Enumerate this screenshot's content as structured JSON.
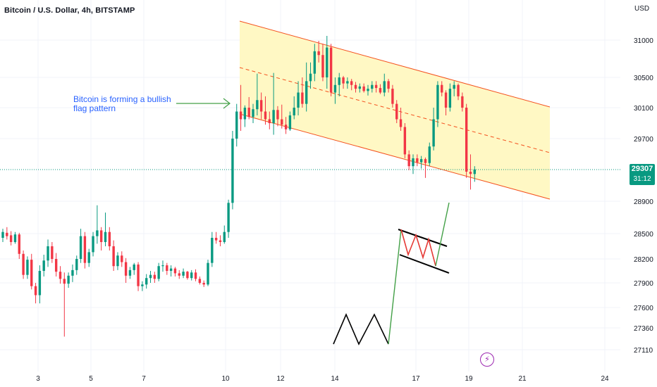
{
  "header": {
    "title": "Bitcoin / U.S. Dollar, 4h, BITSTAMP",
    "currency": "USD"
  },
  "annotation": {
    "text": "Bitcoin is forming a bullish flag pattern"
  },
  "price_tag": {
    "price": "29307",
    "countdown": "31:12",
    "color": "#089981"
  },
  "colors": {
    "up": "#089981",
    "down": "#f23645",
    "channel_fill": "#fff8c4",
    "channel_line": "#f4511e",
    "arrow": "#43a047",
    "flag_red": "#e53935",
    "pole_green": "#43a047"
  },
  "icons": {
    "bolt": "lightning-icon"
  },
  "chart_data": {
    "type": "candlestick",
    "title": "Bitcoin / U.S. Dollar, 4h, BITSTAMP",
    "ylabel": "USD",
    "ylim": [
      27000,
      31350
    ],
    "yticks": [
      31000,
      30500,
      30100,
      29700,
      28900,
      28500,
      28200,
      27900,
      27600,
      27360,
      27110
    ],
    "xticks": [
      "3",
      "5",
      "7",
      "10",
      "12",
      "14",
      "17",
      "19",
      "21",
      "24"
    ],
    "last_price": 29307,
    "grid": true,
    "series": [
      {
        "ohlc": [
          [
            28450,
            28560,
            28400,
            28520
          ],
          [
            28510,
            28580,
            28430,
            28470
          ],
          [
            28480,
            28530,
            28360,
            28400
          ],
          [
            28400,
            28520,
            28380,
            28490
          ],
          [
            28490,
            28510,
            28200,
            28260
          ],
          [
            28260,
            28300,
            27950,
            28000
          ],
          [
            28000,
            28230,
            27950,
            28190
          ],
          [
            28190,
            28260,
            27820,
            27860
          ],
          [
            27860,
            27900,
            27650,
            27750
          ],
          [
            27750,
            28120,
            27650,
            28050
          ],
          [
            28050,
            28250,
            27980,
            28180
          ],
          [
            28180,
            28430,
            28100,
            28350
          ],
          [
            28350,
            28400,
            28150,
            28200
          ],
          [
            28200,
            28270,
            27980,
            28040
          ],
          [
            28040,
            28110,
            27890,
            27950
          ],
          [
            27950,
            28030,
            27260,
            27890
          ],
          [
            27890,
            28030,
            27840,
            27990
          ],
          [
            27990,
            28130,
            27910,
            28060
          ],
          [
            28060,
            28240,
            28000,
            28200
          ],
          [
            28200,
            28560,
            28150,
            28470
          ],
          [
            28470,
            28520,
            28080,
            28150
          ],
          [
            28150,
            28320,
            28100,
            28280
          ],
          [
            28280,
            28520,
            28230,
            28470
          ],
          [
            28470,
            28850,
            28380,
            28540
          ],
          [
            28540,
            28580,
            28300,
            28400
          ],
          [
            28400,
            28760,
            28350,
            28520
          ],
          [
            28520,
            28580,
            28300,
            28350
          ],
          [
            28350,
            28420,
            28050,
            28110
          ],
          [
            28110,
            28280,
            28060,
            28240
          ],
          [
            28240,
            28290,
            28100,
            28160
          ],
          [
            28160,
            28210,
            27900,
            27990
          ],
          [
            27990,
            28100,
            27950,
            28060
          ],
          [
            28060,
            28150,
            28000,
            28130
          ],
          [
            28130,
            28160,
            27800,
            27860
          ],
          [
            27860,
            27920,
            27800,
            27880
          ],
          [
            27880,
            28010,
            27830,
            27960
          ],
          [
            27960,
            28050,
            27900,
            28000
          ],
          [
            28000,
            28040,
            27900,
            27950
          ],
          [
            27950,
            28150,
            27920,
            28110
          ],
          [
            28110,
            28180,
            28040,
            28120
          ],
          [
            28120,
            28150,
            28000,
            28050
          ],
          [
            28050,
            28120,
            27980,
            28080
          ],
          [
            28080,
            28100,
            27980,
            28020
          ],
          [
            28020,
            28060,
            27950,
            27990
          ],
          [
            27990,
            28080,
            27960,
            28040
          ],
          [
            28040,
            28050,
            27940,
            27960
          ],
          [
            27960,
            28060,
            27930,
            28030
          ],
          [
            28030,
            28070,
            27920,
            27950
          ],
          [
            27950,
            27980,
            27880,
            27900
          ],
          [
            27900,
            27930,
            27850,
            27880
          ],
          [
            27880,
            28190,
            27860,
            28150
          ],
          [
            28150,
            28520,
            28100,
            28450
          ],
          [
            28450,
            28520,
            28380,
            28420
          ],
          [
            28420,
            28480,
            28350,
            28400
          ],
          [
            28400,
            28600,
            28380,
            28520
          ],
          [
            28520,
            28920,
            28450,
            28880
          ],
          [
            28880,
            29800,
            28800,
            29700
          ],
          [
            29700,
            30150,
            29600,
            30050
          ],
          [
            30050,
            30400,
            29800,
            29950
          ],
          [
            29950,
            30130,
            29850,
            30100
          ],
          [
            30100,
            30240,
            29950,
            29980
          ],
          [
            29980,
            30150,
            29900,
            30080
          ],
          [
            30080,
            30550,
            30000,
            30200
          ],
          [
            30200,
            30300,
            29950,
            30050
          ],
          [
            30050,
            30250,
            29880,
            29950
          ],
          [
            29950,
            30050,
            29820,
            29900
          ],
          [
            29900,
            30560,
            29750,
            30070
          ],
          [
            30070,
            30120,
            29860,
            29950
          ],
          [
            29950,
            30140,
            29830,
            29880
          ],
          [
            29880,
            29980,
            29760,
            29820
          ],
          [
            29820,
            30050,
            29800,
            30000
          ],
          [
            30000,
            30250,
            29950,
            30100
          ],
          [
            30100,
            30450,
            30000,
            30300
          ],
          [
            30300,
            30500,
            30100,
            30150
          ],
          [
            30150,
            30700,
            30050,
            30450
          ],
          [
            30450,
            30700,
            30350,
            30550
          ],
          [
            30550,
            30950,
            30450,
            30850
          ],
          [
            30850,
            30990,
            30700,
            30800
          ],
          [
            30800,
            30950,
            30450,
            30500
          ],
          [
            30500,
            31060,
            30350,
            30900
          ],
          [
            30900,
            30950,
            30250,
            30300
          ],
          [
            30300,
            30500,
            30150,
            30400
          ],
          [
            30400,
            30560,
            30250,
            30500
          ],
          [
            30500,
            30520,
            30350,
            30420
          ],
          [
            30420,
            30500,
            30350,
            30450
          ],
          [
            30450,
            30480,
            30330,
            30400
          ],
          [
            30400,
            30440,
            30300,
            30350
          ],
          [
            30350,
            30420,
            30300,
            30380
          ],
          [
            30380,
            30420,
            30300,
            30320
          ],
          [
            30320,
            30400,
            30260,
            30350
          ],
          [
            30350,
            30450,
            30300,
            30400
          ],
          [
            30400,
            30450,
            30300,
            30360
          ],
          [
            30360,
            30410,
            30280,
            30300
          ],
          [
            30300,
            30550,
            30250,
            30450
          ],
          [
            30450,
            30480,
            30300,
            30350
          ],
          [
            30350,
            30400,
            30100,
            30150
          ],
          [
            30150,
            30200,
            29900,
            29950
          ],
          [
            29950,
            30100,
            29800,
            29850
          ],
          [
            29850,
            29900,
            29450,
            29500
          ],
          [
            29500,
            29550,
            29300,
            29350
          ],
          [
            29350,
            29500,
            29250,
            29450
          ],
          [
            29450,
            29500,
            29350,
            29400
          ],
          [
            29400,
            29480,
            29320,
            29440
          ],
          [
            29440,
            29460,
            29200,
            29390
          ],
          [
            29390,
            29650,
            29350,
            29600
          ],
          [
            29600,
            30100,
            29550,
            29950
          ],
          [
            29950,
            30450,
            29850,
            30400
          ],
          [
            30400,
            30450,
            30250,
            30300
          ],
          [
            30300,
            30330,
            30000,
            30100
          ],
          [
            30100,
            30420,
            30050,
            30350
          ],
          [
            30350,
            30450,
            30250,
            30400
          ],
          [
            30400,
            30420,
            30200,
            30250
          ],
          [
            30250,
            30300,
            30050,
            30100
          ],
          [
            30100,
            30150,
            29200,
            29280
          ],
          [
            29280,
            29500,
            29050,
            29250
          ],
          [
            29250,
            29350,
            29150,
            29307
          ]
        ]
      }
    ],
    "overlays": [
      "descending channel with dashed midline",
      "bullish flag schematic"
    ]
  }
}
